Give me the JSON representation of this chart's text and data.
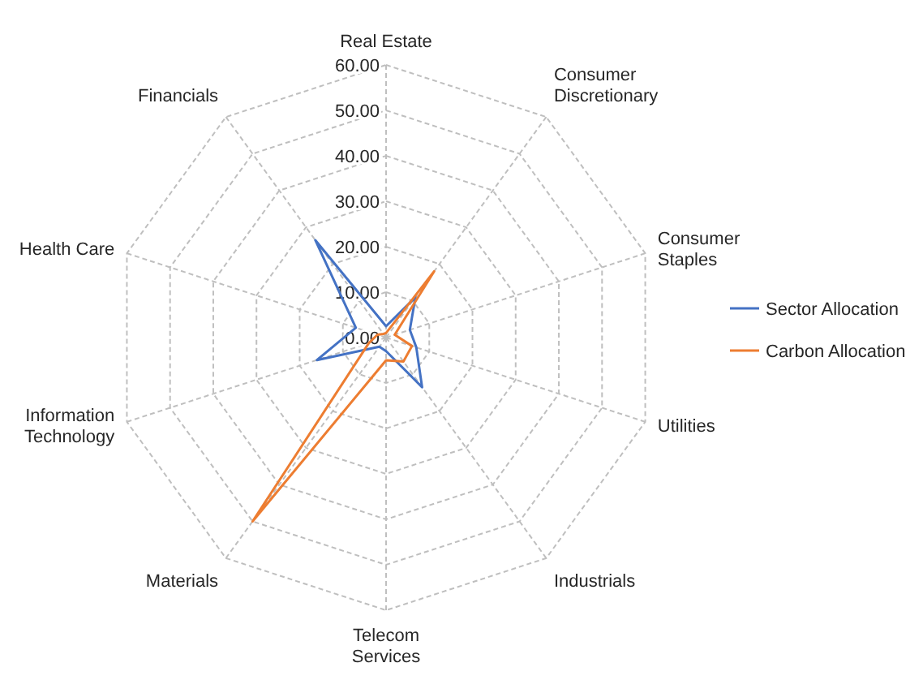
{
  "chart_data": {
    "type": "radar",
    "categories": [
      "Real Estate",
      "Consumer Discretionary",
      "Consumer Staples",
      "Utilities",
      "Industrials",
      "Telecom Services",
      "Materials",
      "Information Technology",
      "Health Care",
      "Financials"
    ],
    "series": [
      {
        "name": "Sector Allocation",
        "color": "#4472c4",
        "values": [
          2.5,
          11,
          5.5,
          7,
          13.5,
          3,
          2.5,
          16,
          7,
          26.5
        ]
      },
      {
        "name": "Carbon Allocation",
        "color": "#ed7d31",
        "values": [
          1,
          18,
          2,
          6,
          6.5,
          5,
          50,
          4,
          2,
          1
        ]
      }
    ],
    "ylim": [
      0,
      60
    ],
    "yticks": [
      {
        "value": 0,
        "label": "0.00"
      },
      {
        "value": 10,
        "label": "10.00"
      },
      {
        "value": 20,
        "label": "20.00"
      },
      {
        "value": 30,
        "label": "30.00"
      },
      {
        "value": 40,
        "label": "40.00"
      },
      {
        "value": 50,
        "label": "50.00"
      },
      {
        "value": 60,
        "label": "60.00"
      }
    ],
    "grid": true,
    "legend": "right"
  }
}
